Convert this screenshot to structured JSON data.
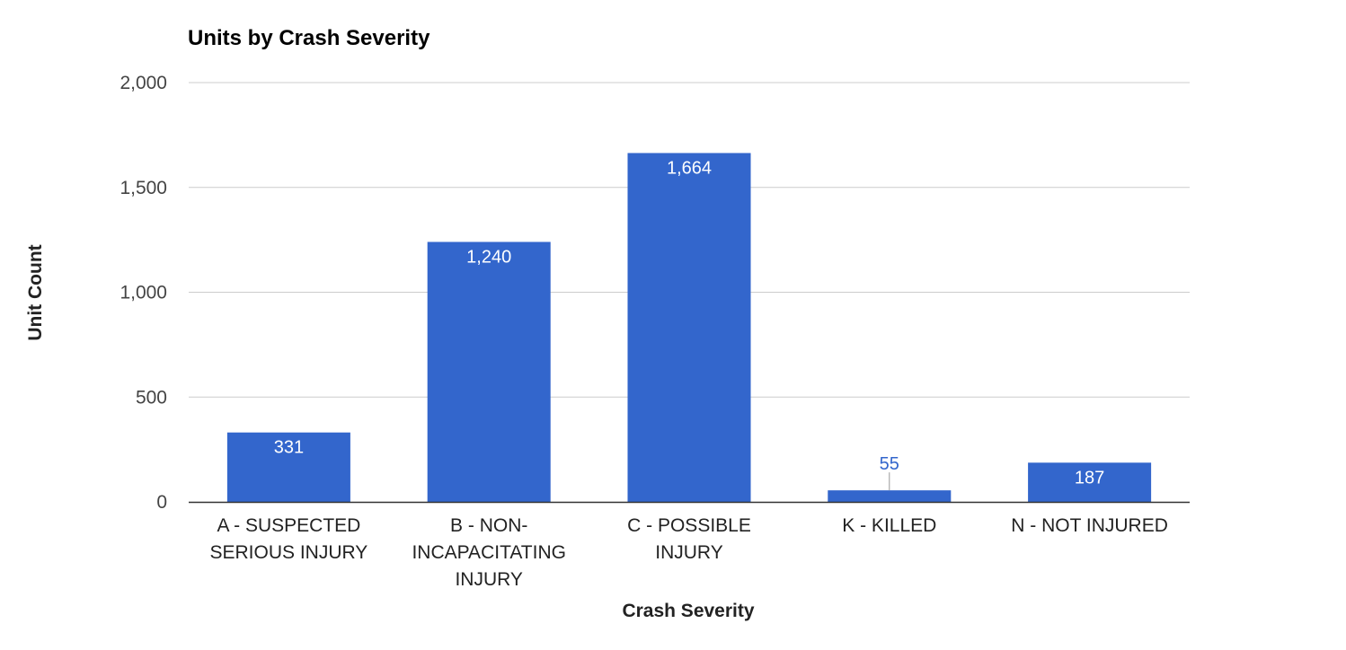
{
  "chart_data": {
    "type": "bar",
    "title": "Units by Crash Severity",
    "xlabel": "Crash Severity",
    "ylabel": "Unit Count",
    "categories": [
      [
        "A - SUSPECTED",
        "SERIOUS INJURY"
      ],
      [
        "B - NON-",
        "INCAPACITATING",
        "INJURY"
      ],
      [
        "C - POSSIBLE",
        "INJURY"
      ],
      [
        "K - KILLED"
      ],
      [
        "N - NOT INJURED"
      ]
    ],
    "values": [
      331,
      1240,
      1664,
      55,
      187
    ],
    "value_labels": [
      "331",
      "1,240",
      "1,664",
      "55",
      "187"
    ],
    "y_ticks": [
      0,
      500,
      1000,
      1500,
      2000
    ],
    "y_tick_labels": [
      "0",
      "500",
      "1,000",
      "1,500",
      "2,000"
    ],
    "ylim": [
      0,
      2000
    ],
    "grid": true,
    "legend": "none",
    "colors": {
      "bar": "#3366cc",
      "grid": "#cccccc",
      "axis": "#333333"
    }
  }
}
